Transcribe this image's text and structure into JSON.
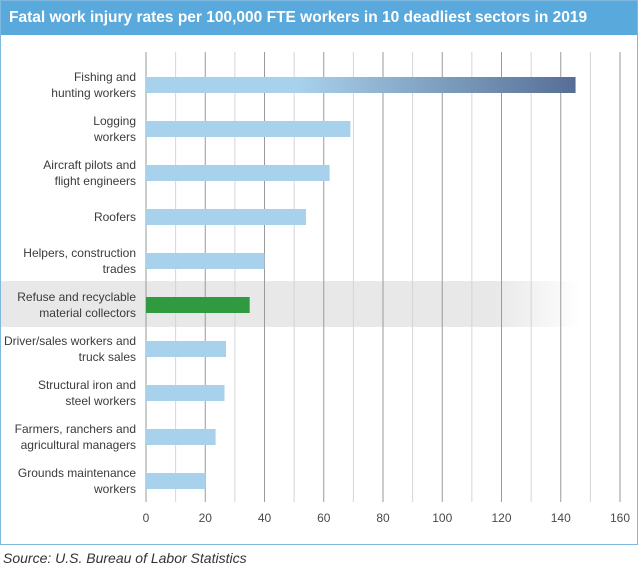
{
  "chart_data": {
    "type": "bar",
    "orientation": "horizontal",
    "title": "Fatal work injury rates per 100,000 FTE workers in 10 deadliest sectors in 2019",
    "categories": [
      [
        "Fishing and",
        "hunting workers"
      ],
      [
        "Logging",
        "workers"
      ],
      [
        "Aircraft pilots and",
        "flight engineers"
      ],
      [
        "Roofers"
      ],
      [
        "Helpers, construction",
        "trades"
      ],
      [
        "Refuse and recyclable",
        "material collectors"
      ],
      [
        "Driver/sales workers and",
        "truck sales"
      ],
      [
        "Structural iron and",
        "steel workers"
      ],
      [
        "Farmers, ranchers and",
        "agricultural managers"
      ],
      [
        "Grounds maintenance",
        "workers"
      ]
    ],
    "values": [
      145,
      69,
      62,
      54,
      40,
      35,
      27,
      26.5,
      23.5,
      20
    ],
    "highlight_index": 5,
    "xlim": [
      0,
      160
    ],
    "xticks": [
      0,
      20,
      40,
      60,
      80,
      100,
      120,
      140,
      160
    ],
    "grid": true,
    "colors": {
      "bar": "#a8d2ec",
      "top_bar_end": "#566e95",
      "highlight_bar": "#2f9a3f",
      "highlight_band": "#e8e8e8",
      "grid_major": "#9a9a9a",
      "grid_minor": "#d4d4d4"
    }
  },
  "source": "Source: U.S. Bureau of Labor Statistics"
}
